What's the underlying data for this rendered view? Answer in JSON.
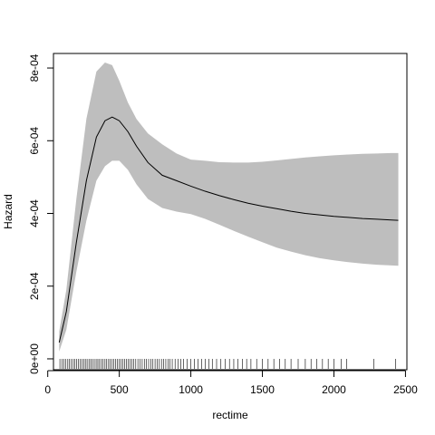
{
  "chart_data": {
    "type": "line",
    "title": "",
    "xlabel": "rectime",
    "ylabel": "Hazard",
    "xlim": [
      40,
      2510
    ],
    "ylim": [
      -3e-05,
      0.00084
    ],
    "x_ticks": [
      {
        "value": 0,
        "label": "0"
      },
      {
        "value": 500,
        "label": "500"
      },
      {
        "value": 1000,
        "label": "1000"
      },
      {
        "value": 1500,
        "label": "1500"
      },
      {
        "value": 2000,
        "label": "2000"
      },
      {
        "value": 2500,
        "label": "2500"
      }
    ],
    "y_ticks": [
      {
        "value": 0,
        "label": "0e+00"
      },
      {
        "value": 0.0002,
        "label": "2e-04"
      },
      {
        "value": 0.0004,
        "label": "4e-04"
      },
      {
        "value": 0.0006,
        "label": "6e-04"
      },
      {
        "value": 0.0008,
        "label": "8e-04"
      }
    ],
    "colors": {
      "band": "#bebebe",
      "line": "#000000",
      "axes": "#000000"
    },
    "series": [
      {
        "kind": "estimate",
        "x": [
          80,
          130,
          200,
          270,
          340,
          400,
          450,
          500,
          560,
          620,
          700,
          800,
          900,
          1000,
          1100,
          1200,
          1300,
          1400,
          1500,
          1600,
          1700,
          1800,
          1900,
          2000,
          2100,
          2200,
          2300,
          2400,
          2450
        ],
        "values": [
          4.5e-05,
          0.00013,
          0.00032,
          0.00049,
          0.00061,
          0.000655,
          0.000665,
          0.000655,
          0.000625,
          0.000585,
          0.00054,
          0.000505,
          0.00049,
          0.000475,
          0.000461,
          0.000449,
          0.000438,
          0.000428,
          0.00042,
          0.000413,
          0.000406,
          0.0004,
          0.000396,
          0.000392,
          0.000389,
          0.000386,
          0.000384,
          0.000382,
          0.000381
        ]
      },
      {
        "kind": "band-upper",
        "x": [
          80,
          130,
          200,
          270,
          340,
          400,
          450,
          500,
          560,
          620,
          700,
          800,
          900,
          1000,
          1100,
          1200,
          1300,
          1400,
          1500,
          1600,
          1700,
          1800,
          1900,
          2000,
          2100,
          2200,
          2300,
          2400,
          2450
        ],
        "values": [
          7.5e-05,
          0.00019,
          0.00044,
          0.00066,
          0.00079,
          0.000815,
          0.000808,
          0.000765,
          0.000705,
          0.00066,
          0.00062,
          0.00059,
          0.000565,
          0.000548,
          0.000545,
          0.000541,
          0.00054,
          0.00054,
          0.000542,
          0.000546,
          0.00055,
          0.000554,
          0.000557,
          0.00056,
          0.000562,
          0.000564,
          0.000565,
          0.000566,
          0.000566
        ]
      },
      {
        "kind": "band-lower",
        "x": [
          80,
          130,
          200,
          270,
          340,
          400,
          450,
          500,
          560,
          620,
          700,
          800,
          900,
          1000,
          1100,
          1200,
          1300,
          1400,
          1500,
          1600,
          1700,
          1800,
          1900,
          2000,
          2100,
          2200,
          2300,
          2400,
          2450
        ],
        "values": [
          2e-05,
          8e-05,
          0.00024,
          0.00038,
          0.00049,
          0.00053,
          0.000545,
          0.000545,
          0.00052,
          0.00048,
          0.00044,
          0.000415,
          0.000405,
          0.000398,
          0.000385,
          0.000369,
          0.000352,
          0.000336,
          0.000321,
          0.000306,
          0.000295,
          0.000285,
          0.000277,
          0.000271,
          0.000266,
          0.000262,
          0.000259,
          0.000257,
          0.000256
        ]
      }
    ],
    "rug": [
      85,
      100,
      112,
      125,
      140,
      152,
      165,
      178,
      190,
      202,
      215,
      228,
      240,
      252,
      263,
      275,
      288,
      300,
      312,
      325,
      338,
      350,
      362,
      375,
      387,
      400,
      412,
      425,
      437,
      450,
      462,
      475,
      487,
      500,
      512,
      525,
      538,
      550,
      563,
      575,
      588,
      600,
      615,
      630,
      645,
      660,
      675,
      690,
      705,
      720,
      735,
      750,
      765,
      780,
      795,
      810,
      825,
      840,
      855,
      870,
      890,
      910,
      930,
      950,
      975,
      1000,
      1025,
      1050,
      1075,
      1100,
      1125,
      1150,
      1180,
      1210,
      1240,
      1270,
      1300,
      1330,
      1360,
      1390,
      1420,
      1460,
      1500,
      1540,
      1580,
      1620,
      1660,
      1700,
      1750,
      1800,
      1840,
      1880,
      1920,
      1960,
      2000,
      2050,
      2090,
      2280,
      2430
    ]
  }
}
